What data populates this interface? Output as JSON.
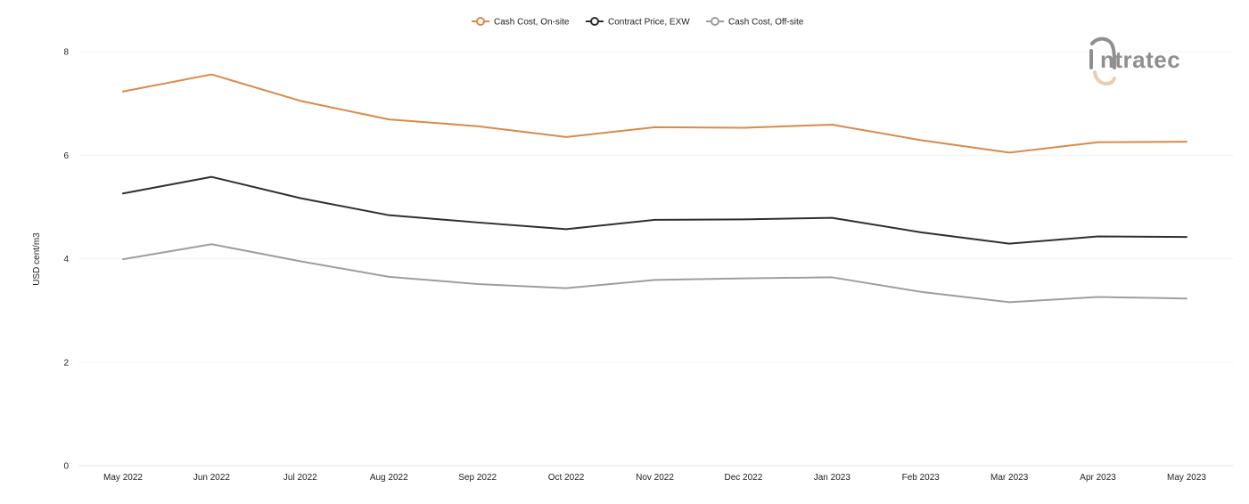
{
  "brand": {
    "name": "ntratec",
    "logo_icon": "intratec-logo-icon",
    "logo_color": "#8f8f8f",
    "logo_accent_color": "#e9cdb4"
  },
  "chart_data": {
    "type": "line",
    "title": "",
    "xlabel": "",
    "ylabel": "USD cent/m3",
    "ylim": [
      0,
      8
    ],
    "yticks": [
      0,
      2,
      4,
      6,
      8
    ],
    "grid": true,
    "legend_position": "top-center",
    "categories": [
      "May 2022",
      "Jun 2022",
      "Jul 2022",
      "Aug 2022",
      "Sep 2022",
      "Oct 2022",
      "Nov 2022",
      "Dec 2022",
      "Jan 2023",
      "Feb 2023",
      "Mar 2023",
      "Apr 2023",
      "May 2023"
    ],
    "series": [
      {
        "name": "Cash Cost, On-site",
        "color": "#d98a48",
        "values": [
          7.23,
          7.56,
          7.05,
          6.69,
          6.56,
          6.35,
          6.54,
          6.53,
          6.59,
          6.29,
          6.05,
          6.25,
          6.26
        ]
      },
      {
        "name": "Contract Price, EXW",
        "color": "#2f2f2f",
        "values": [
          5.26,
          5.58,
          5.17,
          4.84,
          4.7,
          4.57,
          4.75,
          4.76,
          4.79,
          4.51,
          4.29,
          4.43,
          4.42
        ]
      },
      {
        "name": "Cash Cost, Off-site",
        "color": "#9e9e9e",
        "values": [
          3.99,
          4.28,
          3.95,
          3.65,
          3.51,
          3.43,
          3.59,
          3.62,
          3.64,
          3.36,
          3.16,
          3.26,
          3.23
        ]
      }
    ]
  }
}
